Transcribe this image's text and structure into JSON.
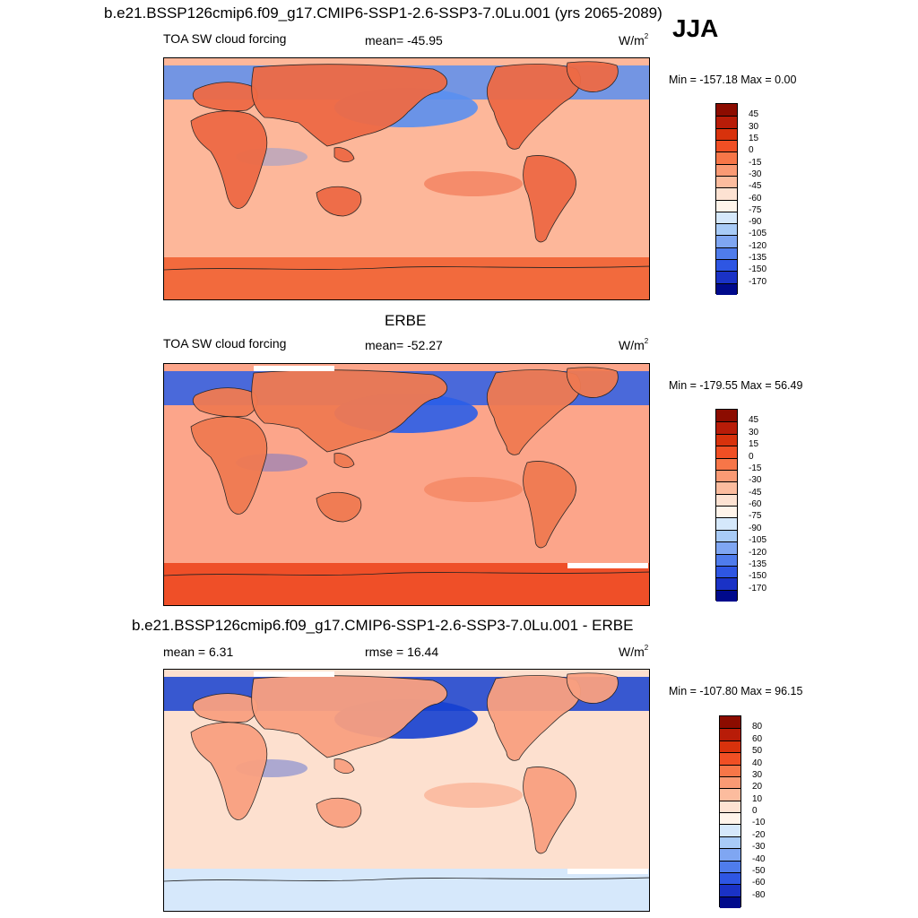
{
  "header": {
    "title": "b.e21.BSSP126cmip6.f09_g17.CMIP6-SSP1-2.6-SSP3-7.0Lu.001 (yrs 2065-2089)",
    "season": "JJA"
  },
  "panels": [
    {
      "id": "model",
      "left_label": "TOA SW cloud forcing",
      "center_label": "mean= -45.95",
      "units": "W/m",
      "units_exp": "2",
      "minmax": "Min = -157.18 Max =   0.00",
      "colors": {
        "ocean": "#fdb79a",
        "land": "#ee6a45",
        "south": "#f26a3d",
        "north": "#5a8ff0"
      }
    },
    {
      "id": "obs",
      "title": "ERBE",
      "left_label": "TOA SW cloud forcing",
      "center_label": "mean= -52.27",
      "units": "W/m",
      "units_exp": "2",
      "minmax": "Min = -179.55 Max =  56.49",
      "colors": {
        "ocean": "#fca58a",
        "land": "#f07a52",
        "south": "#ef4f28",
        "north": "#2a5ee8"
      }
    },
    {
      "id": "diff",
      "title": "b.e21.BSSP126cmip6.f09_g17.CMIP6-SSP1-2.6-SSP3-7.0Lu.001 - ERBE",
      "left_label": "mean =   6.31",
      "center_label": "rmse =  16.44",
      "units": "W/m",
      "units_exp": "2",
      "minmax": "Min = -107.80 Max =  96.15",
      "colors": {
        "ocean": "#fde0cf",
        "land": "#f9a080",
        "south": "#d6e8fb",
        "north": "#1540d0"
      }
    }
  ],
  "colorbars": {
    "cloud_forcing": {
      "labels": [
        "45",
        "30",
        "15",
        "0",
        "-15",
        "-30",
        "-45",
        "-60",
        "-75",
        "-90",
        "-105",
        "-120",
        "-135",
        "-150",
        "-170"
      ],
      "colors": [
        "#8c0c00",
        "#b81c08",
        "#d8320c",
        "#f04f24",
        "#f77648",
        "#fa9a74",
        "#fcbc9e",
        "#fde2d2",
        "#fff4ea",
        "#d5e8fb",
        "#a8cbf7",
        "#7fa6f2",
        "#4f7cec",
        "#2e56e3",
        "#1a32c6",
        "#000a8c"
      ]
    },
    "difference": {
      "labels": [
        "80",
        "60",
        "50",
        "40",
        "30",
        "20",
        "10",
        "0",
        "-10",
        "-20",
        "-30",
        "-40",
        "-50",
        "-60",
        "-80"
      ],
      "colors": [
        "#8c0c00",
        "#b81c08",
        "#d8320c",
        "#f04f24",
        "#f77648",
        "#fa9a74",
        "#fcbc9e",
        "#fde2d2",
        "#fff4ea",
        "#d5e8fb",
        "#a8cbf7",
        "#7fa6f2",
        "#4f7cec",
        "#2e56e3",
        "#1a32c6",
        "#000a8c"
      ]
    }
  }
}
